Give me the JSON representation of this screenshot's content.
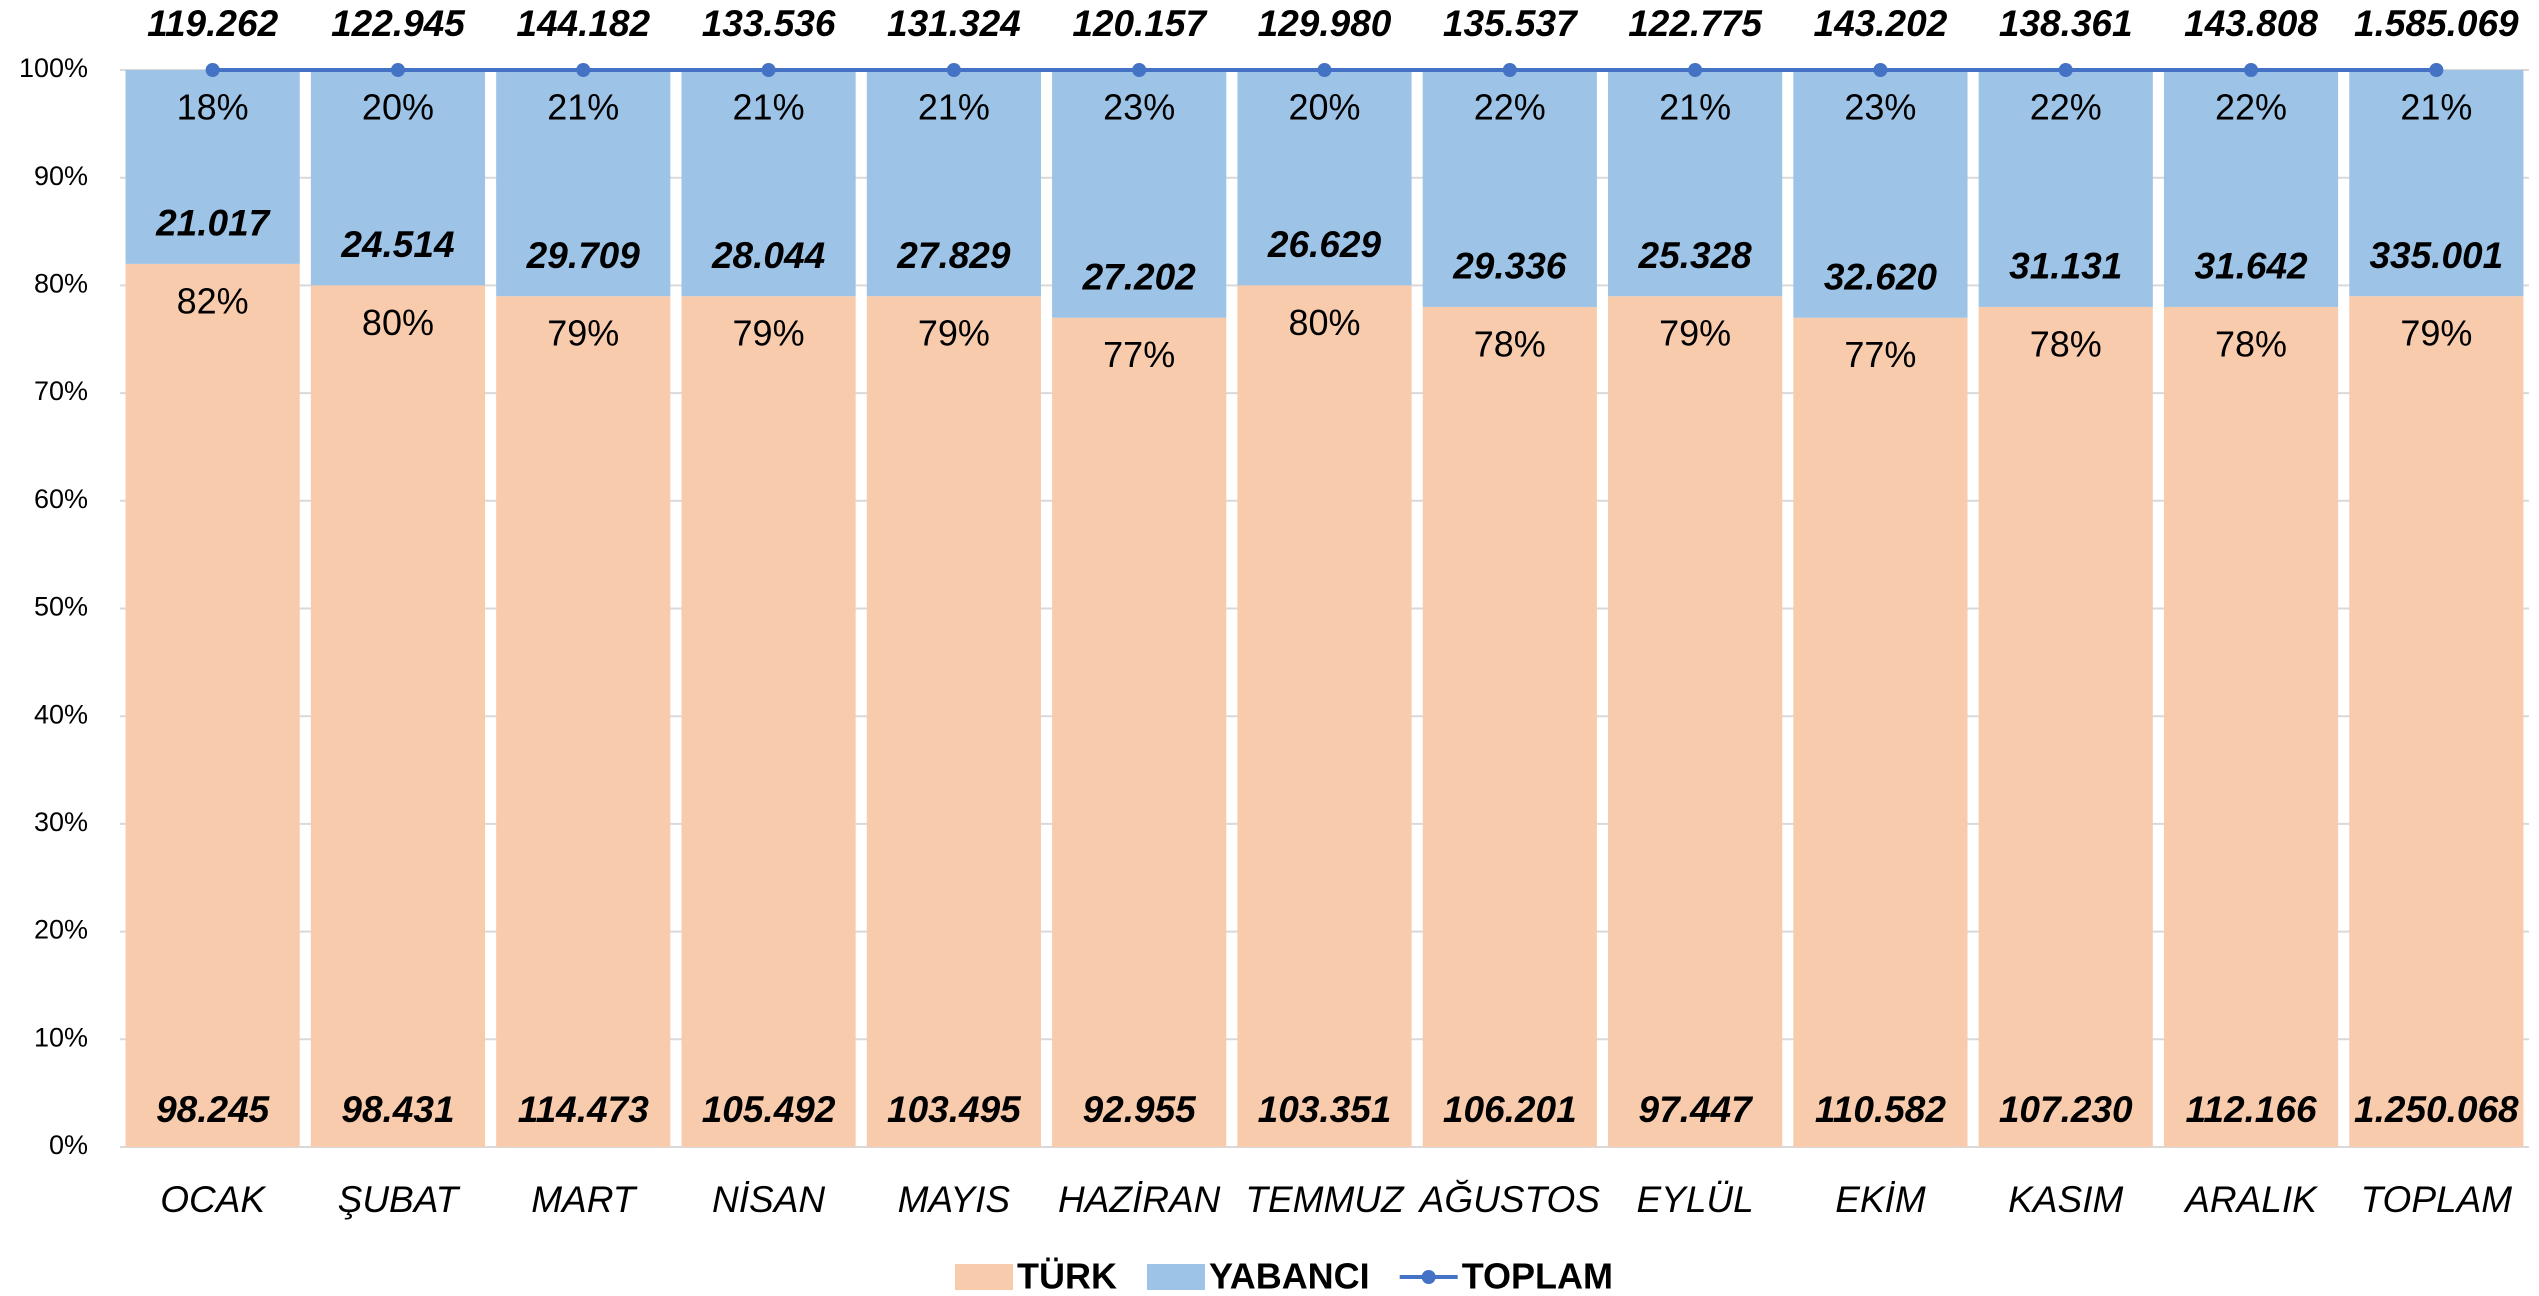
{
  "chart_data": {
    "type": "stacked_percent_bar",
    "categories": [
      "OCAK",
      "ŞUBAT",
      "MART",
      "NİSAN",
      "MAYIS",
      "HAZİRAN",
      "TEMMUZ",
      "AĞUSTOS",
      "EYLÜL",
      "EKİM",
      "KASIM",
      "ARALIK",
      "TOPLAM"
    ],
    "ylim": [
      0,
      100
    ],
    "yticks": [
      {
        "value": 0,
        "label": "0%"
      },
      {
        "value": 10,
        "label": "10%"
      },
      {
        "value": 20,
        "label": "20%"
      },
      {
        "value": 30,
        "label": "30%"
      },
      {
        "value": 40,
        "label": "40%"
      },
      {
        "value": 50,
        "label": "50%"
      },
      {
        "value": 60,
        "label": "60%"
      },
      {
        "value": 70,
        "label": "70%"
      },
      {
        "value": 80,
        "label": "80%"
      },
      {
        "value": 90,
        "label": "90%"
      },
      {
        "value": 100,
        "label": "100%"
      }
    ],
    "grid": true,
    "legend": "bottom",
    "series": [
      {
        "name": "TÜRK",
        "color": "#f8cbad",
        "values": [
          82,
          80,
          79,
          79,
          79,
          77,
          80,
          78,
          79,
          77,
          78,
          78,
          79
        ],
        "value_labels": [
          "82%",
          "80%",
          "79%",
          "79%",
          "79%",
          "77%",
          "80%",
          "78%",
          "79%",
          "77%",
          "78%",
          "78%",
          "79%"
        ],
        "counts": [
          98245,
          98431,
          114473,
          105492,
          103495,
          92955,
          103351,
          106201,
          97447,
          110582,
          107230,
          112166,
          1250068
        ],
        "count_labels": [
          "98.245",
          "98.431",
          "114.473",
          "105.492",
          "103.495",
          "92.955",
          "103.351",
          "106.201",
          "97.447",
          "110.582",
          "107.230",
          "112.166",
          "1.250.068"
        ]
      },
      {
        "name": "YABANCI",
        "color": "#9dc3e6",
        "values": [
          18,
          20,
          21,
          21,
          21,
          23,
          20,
          22,
          21,
          23,
          22,
          22,
          21
        ],
        "value_labels": [
          "18%",
          "20%",
          "21%",
          "21%",
          "21%",
          "23%",
          "20%",
          "22%",
          "21%",
          "23%",
          "22%",
          "22%",
          "21%"
        ],
        "counts": [
          21017,
          24514,
          29709,
          28044,
          27829,
          27202,
          26629,
          29336,
          25328,
          32620,
          31131,
          31642,
          335001
        ],
        "count_labels": [
          "21.017",
          "24.514",
          "29.709",
          "28.044",
          "27.829",
          "27.202",
          "26.629",
          "29.336",
          "25.328",
          "32.620",
          "31.131",
          "31.642",
          "335.001"
        ]
      },
      {
        "name": "TOPLAM",
        "color": "#4472c4",
        "line": true,
        "values": [
          119262,
          122945,
          144182,
          133536,
          131324,
          120157,
          129980,
          135537,
          122775,
          143202,
          138361,
          143808,
          1585069
        ],
        "value_labels": [
          "119.262",
          "122.945",
          "144.182",
          "133.536",
          "131.324",
          "120.157",
          "129.980",
          "135.537",
          "122.775",
          "143.202",
          "138.361",
          "143.808",
          "1.585.069"
        ]
      }
    ]
  }
}
